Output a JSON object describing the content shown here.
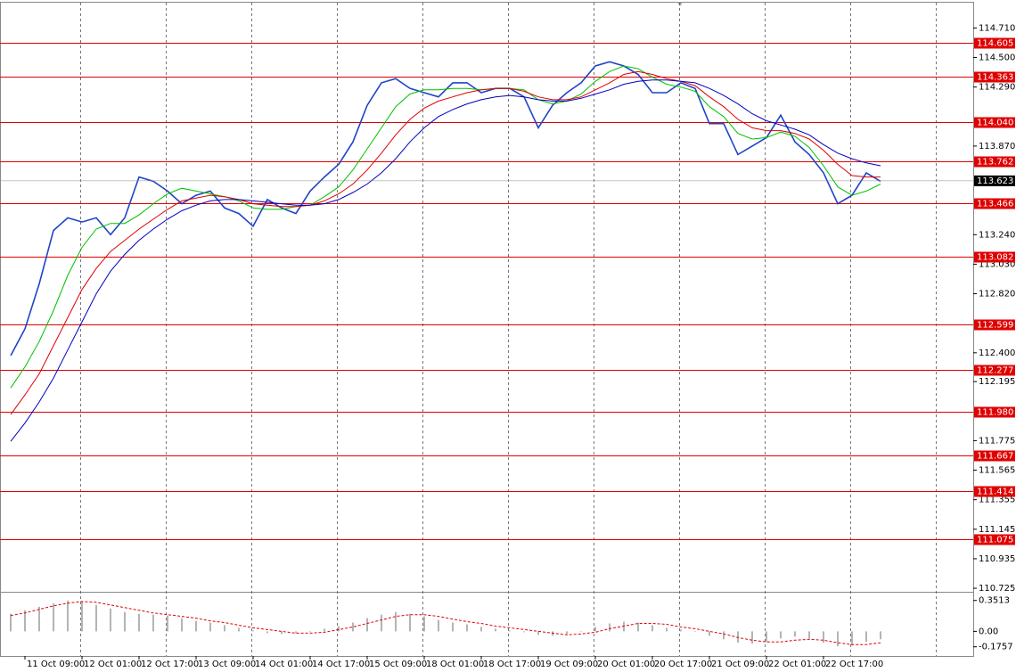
{
  "chart_data": [
    {
      "type": "line",
      "categories": [
        null,
        "11 Oct 09:00",
        null,
        null,
        null,
        "12 Oct 01:00",
        null,
        null,
        null,
        "12 Oct 17:00",
        null,
        null,
        null,
        "13 Oct 09:00",
        null,
        null,
        null,
        "14 Oct 01:00",
        null,
        null,
        null,
        "14 Oct 17:00",
        null,
        null,
        null,
        "15 Oct 09:00",
        null,
        null,
        null,
        "18 Oct 01:00",
        null,
        null,
        null,
        "18 Oct 17:00",
        null,
        null,
        null,
        "19 Oct 09:00",
        null,
        null,
        null,
        "20 Oct 01:00",
        null,
        null,
        null,
        "20 Oct 17:00",
        null,
        null,
        null,
        "21 Oct 09:00",
        null,
        null,
        null,
        "22 Oct 01:00",
        null,
        null,
        null,
        "22 Oct 17:00",
        null,
        null,
        null,
        null
      ],
      "series": [
        {
          "color": "#1f44c8",
          "values": [
            112.38,
            112.57,
            112.89,
            113.27,
            113.36,
            113.33,
            113.36,
            113.24,
            113.36,
            113.65,
            113.62,
            113.55,
            113.46,
            113.52,
            113.55,
            113.43,
            113.39,
            113.3,
            113.49,
            113.43,
            113.39,
            113.55,
            113.65,
            113.74,
            113.9,
            114.16,
            114.32,
            114.35,
            114.28,
            114.25,
            114.22,
            114.32,
            114.32,
            114.25,
            114.28,
            114.28,
            114.22,
            114.0,
            114.16,
            114.25,
            114.32,
            114.44,
            114.47,
            114.44,
            114.38,
            114.25,
            114.25,
            114.32,
            114.28,
            114.03,
            114.03,
            113.81,
            113.87,
            113.93,
            114.09,
            113.9,
            113.81,
            113.68,
            113.46,
            113.52,
            113.68,
            113.62
          ]
        },
        {
          "color": "#00c000",
          "values": [
            112.15,
            112.3,
            112.48,
            112.7,
            112.95,
            113.15,
            113.28,
            113.32,
            113.32,
            113.38,
            113.46,
            113.53,
            113.57,
            113.55,
            113.53,
            113.51,
            113.48,
            113.43,
            113.42,
            113.42,
            113.44,
            113.45,
            113.51,
            113.58,
            113.7,
            113.85,
            114.0,
            114.15,
            114.24,
            114.27,
            114.27,
            114.28,
            114.28,
            114.27,
            114.28,
            114.28,
            114.27,
            114.2,
            114.17,
            114.19,
            114.24,
            114.33,
            114.4,
            114.44,
            114.42,
            114.36,
            114.31,
            114.29,
            114.26,
            114.15,
            114.08,
            113.96,
            113.92,
            113.93,
            113.97,
            113.94,
            113.86,
            113.73,
            113.58,
            113.52,
            113.55,
            113.6
          ]
        },
        {
          "color": "#e00000",
          "values": [
            111.96,
            112.1,
            112.25,
            112.45,
            112.65,
            112.85,
            113.0,
            113.12,
            113.2,
            113.28,
            113.35,
            113.42,
            113.48,
            113.5,
            113.52,
            113.51,
            113.49,
            113.46,
            113.45,
            113.44,
            113.44,
            113.45,
            113.48,
            113.53,
            113.6,
            113.7,
            113.82,
            113.95,
            114.06,
            114.14,
            114.19,
            114.22,
            114.25,
            114.27,
            114.28,
            114.28,
            114.26,
            114.22,
            114.2,
            114.2,
            114.22,
            114.27,
            114.32,
            114.38,
            114.4,
            114.38,
            114.35,
            114.33,
            114.3,
            114.22,
            114.15,
            114.06,
            114.0,
            113.98,
            113.98,
            113.96,
            113.92,
            113.84,
            113.74,
            113.66,
            113.65,
            113.65
          ]
        },
        {
          "color": "#0000c0",
          "values": [
            111.77,
            111.9,
            112.05,
            112.22,
            112.42,
            112.62,
            112.82,
            112.98,
            113.1,
            113.2,
            113.28,
            113.35,
            113.41,
            113.45,
            113.48,
            113.49,
            113.49,
            113.48,
            113.47,
            113.46,
            113.45,
            113.45,
            113.46,
            113.49,
            113.54,
            113.6,
            113.68,
            113.78,
            113.9,
            114.0,
            114.08,
            114.13,
            114.17,
            114.2,
            114.22,
            114.23,
            114.22,
            114.2,
            114.19,
            114.19,
            114.21,
            114.24,
            114.27,
            114.31,
            114.33,
            114.34,
            114.34,
            114.33,
            114.32,
            114.28,
            114.23,
            114.17,
            114.1,
            114.05,
            114.02,
            113.99,
            113.95,
            113.88,
            113.82,
            113.78,
            113.75,
            113.73
          ]
        }
      ],
      "ylim": [
        110.7,
        114.89
      ],
      "yticks": [
        {
          "value": 114.71,
          "label": "114.710"
        },
        {
          "value": 114.5,
          "label": "114.500"
        },
        {
          "value": 114.29,
          "label": "114.290"
        },
        {
          "value": 113.87,
          "label": "113.870"
        },
        {
          "value": 113.24,
          "label": "113.240"
        },
        {
          "value": 113.03,
          "label": "113.030"
        },
        {
          "value": 112.82,
          "label": "112.820"
        },
        {
          "value": 112.4,
          "label": "112.400"
        },
        112.195,
        {
          "value": 111.775,
          "label": "111.775"
        },
        111.565,
        111.355,
        111.145,
        110.935,
        110.725
      ],
      "levels": [
        114.605,
        114.363,
        {
          "value": 114.04,
          "label": "114.040"
        },
        113.762,
        113.466,
        113.082,
        112.599,
        112.277,
        {
          "value": 111.98,
          "label": "111.980"
        },
        111.667,
        111.414,
        111.075
      ],
      "level_color": "#e00000",
      "last_price": 113.623,
      "grid": true
    },
    {
      "type": "bar",
      "series": [
        {
          "color": "#b4b4b4",
          "values": [
            0.2,
            0.24,
            0.28,
            0.32,
            0.35,
            0.34,
            0.3,
            0.26,
            0.22,
            0.2,
            0.19,
            0.18,
            0.15,
            0.12,
            0.1,
            0.07,
            0.04,
            0.01,
            -0.02,
            -0.03,
            -0.02,
            0.0,
            0.03,
            0.06,
            0.1,
            0.15,
            0.19,
            0.22,
            0.2,
            0.17,
            0.13,
            0.1,
            0.08,
            0.05,
            0.03,
            0.01,
            -0.01,
            -0.04,
            -0.05,
            -0.03,
            0.0,
            0.05,
            0.09,
            0.11,
            0.1,
            0.07,
            0.04,
            0.02,
            0.0,
            -0.05,
            -0.09,
            -0.13,
            -0.14,
            -0.12,
            -0.08,
            -0.06,
            -0.08,
            -0.13,
            -0.17,
            -0.16,
            -0.12,
            -0.09
          ]
        },
        {
          "color": "#e00000",
          "type": "line",
          "values": [
            0.18,
            0.21,
            0.25,
            0.29,
            0.32,
            0.34,
            0.33,
            0.3,
            0.27,
            0.24,
            0.21,
            0.19,
            0.17,
            0.15,
            0.12,
            0.1,
            0.07,
            0.04,
            0.02,
            0.0,
            -0.02,
            -0.02,
            -0.01,
            0.02,
            0.05,
            0.09,
            0.13,
            0.17,
            0.19,
            0.19,
            0.17,
            0.14,
            0.11,
            0.09,
            0.06,
            0.04,
            0.02,
            0.0,
            -0.02,
            -0.04,
            -0.03,
            -0.01,
            0.03,
            0.06,
            0.09,
            0.09,
            0.08,
            0.05,
            0.03,
            0.0,
            -0.03,
            -0.07,
            -0.1,
            -0.12,
            -0.12,
            -0.1,
            -0.09,
            -0.1,
            -0.13,
            -0.15,
            -0.15,
            -0.13
          ]
        }
      ],
      "ylim": [
        -0.28,
        0.44
      ],
      "yticks": [
        0.3513,
        {
          "value": 0,
          "label": "0.00"
        },
        -0.1757
      ]
    }
  ]
}
